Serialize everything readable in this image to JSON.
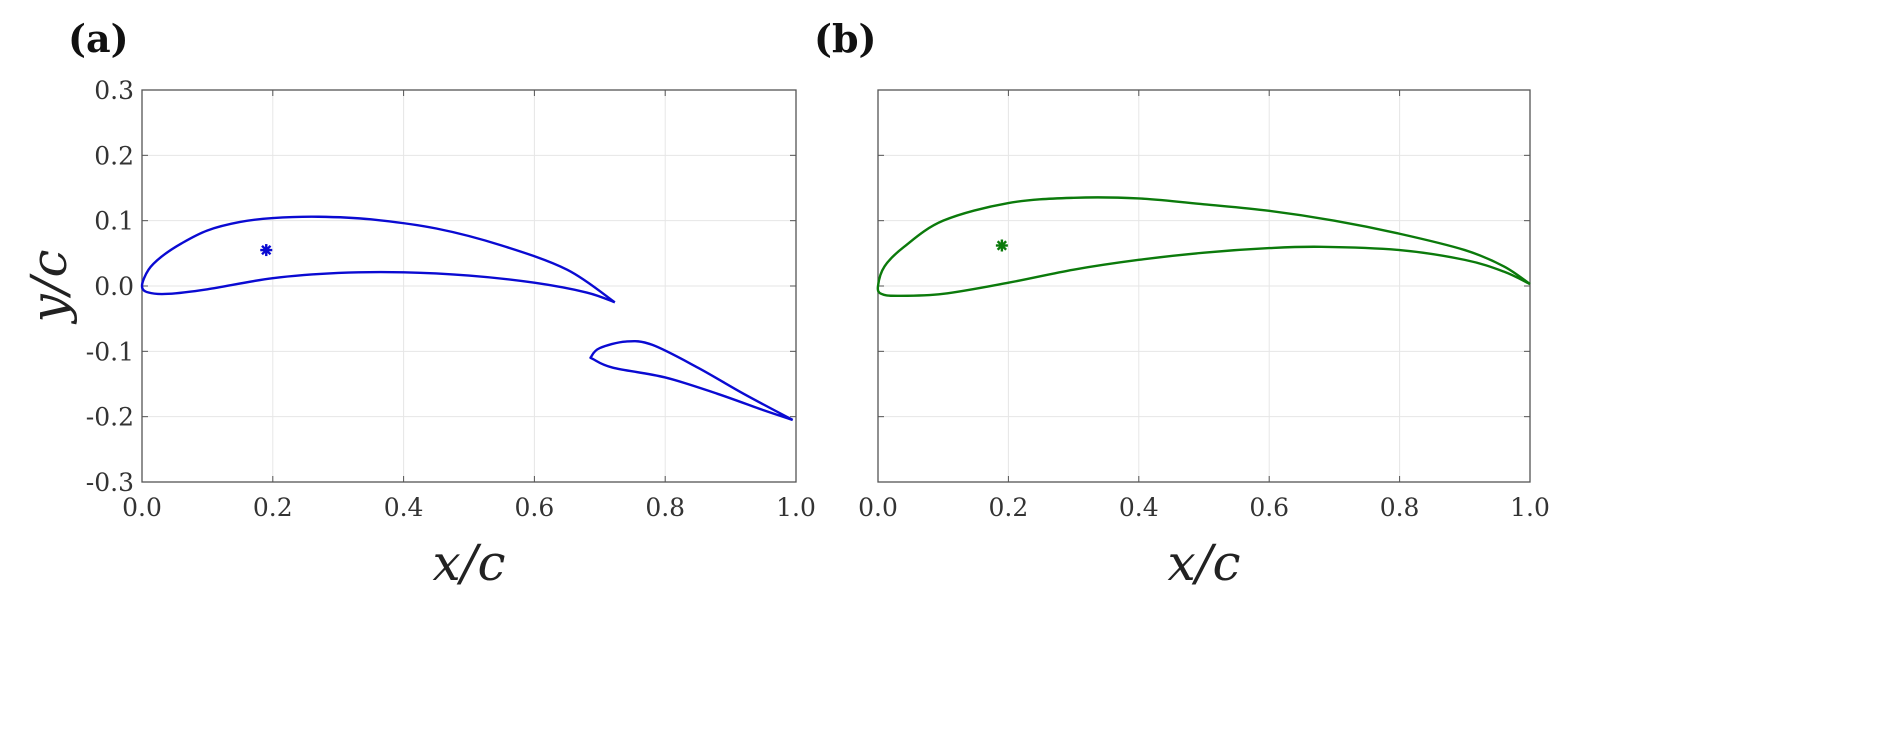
{
  "chart_data": [
    {
      "type": "line",
      "panel_label": "(a)",
      "xlabel": "x/c",
      "ylabel": "y/c",
      "xlim": [
        0,
        1
      ],
      "ylim": [
        -0.3,
        0.3
      ],
      "xticks": [
        "0.0",
        "0.2",
        "0.4",
        "0.6",
        "0.8",
        "1.0"
      ],
      "yticks": [
        "0.3",
        "0.2",
        "0.1",
        "0.0",
        "-0.1",
        "-0.2",
        "-0.3"
      ],
      "grid": true,
      "color": "#0a0ad2",
      "series": [
        {
          "x": [
            0.723,
            0.65,
            0.55,
            0.45,
            0.35,
            0.27,
            0.2,
            0.15,
            0.1,
            0.06,
            0.03,
            0.01,
            0.0,
            0.01,
            0.04,
            0.1,
            0.2,
            0.3,
            0.4,
            0.5,
            0.6,
            0.68,
            0.723
          ],
          "y": [
            -0.025,
            0.025,
            0.062,
            0.088,
            0.102,
            0.106,
            0.104,
            0.098,
            0.085,
            0.065,
            0.045,
            0.025,
            0.0,
            -0.01,
            -0.012,
            -0.005,
            0.012,
            0.02,
            0.021,
            0.016,
            0.005,
            -0.01,
            -0.025
          ]
        },
        {
          "x": [
            0.995,
            0.92,
            0.85,
            0.78,
            0.74,
            0.7,
            0.687,
            0.69,
            0.72,
            0.8,
            0.88,
            0.95,
            0.995
          ],
          "y": [
            -0.205,
            -0.165,
            -0.125,
            -0.09,
            -0.085,
            -0.095,
            -0.108,
            -0.112,
            -0.125,
            -0.14,
            -0.165,
            -0.19,
            -0.205
          ]
        }
      ],
      "marker": {
        "symbol": "asterisk",
        "x": 0.19,
        "y": 0.055
      }
    },
    {
      "type": "line",
      "panel_label": "(b)",
      "xlabel": "x/c",
      "xlim": [
        0,
        1
      ],
      "ylim": [
        -0.3,
        0.3
      ],
      "xticks": [
        "0.0",
        "0.2",
        "0.4",
        "0.6",
        "0.8",
        "1.0"
      ],
      "grid": true,
      "color": "#0b7a0b",
      "series": [
        {
          "x": [
            1.0,
            0.96,
            0.9,
            0.8,
            0.7,
            0.6,
            0.5,
            0.4,
            0.3,
            0.2,
            0.1,
            0.04,
            0.01,
            0.0,
            0.005,
            0.03,
            0.1,
            0.2,
            0.3,
            0.4,
            0.5,
            0.6,
            0.68,
            0.8,
            0.9,
            0.96,
            1.0
          ],
          "y": [
            0.003,
            0.03,
            0.055,
            0.08,
            0.1,
            0.115,
            0.125,
            0.134,
            0.135,
            0.127,
            0.1,
            0.06,
            0.03,
            0.0,
            -0.012,
            -0.015,
            -0.012,
            0.005,
            0.025,
            0.04,
            0.051,
            0.058,
            0.06,
            0.055,
            0.04,
            0.022,
            0.003
          ]
        }
      ],
      "marker": {
        "symbol": "asterisk",
        "x": 0.19,
        "y": 0.062
      }
    }
  ]
}
